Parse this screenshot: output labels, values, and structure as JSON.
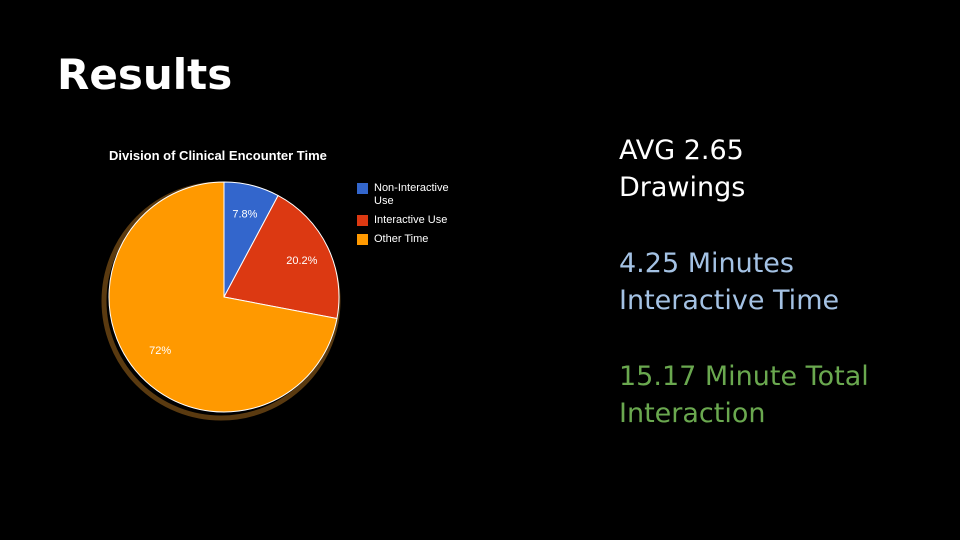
{
  "slide": {
    "title": "Results"
  },
  "chart_data": {
    "type": "pie",
    "title": "Division of Clinical Encounter Time",
    "categories": [
      "Non-Interactive Use",
      "Interactive Use",
      "Other Time"
    ],
    "values": [
      7.8,
      20.2,
      72
    ],
    "labels": [
      "7.8%",
      "20.2%",
      "72%"
    ],
    "colors": [
      "#3366cc",
      "#dc3912",
      "#ff9900"
    ],
    "legend_position": "right",
    "legend_lines": [
      [
        "Non-Interactive",
        "Use"
      ],
      [
        "Interactive Use"
      ],
      [
        "Other Time"
      ]
    ]
  },
  "stats": [
    {
      "line1": "AVG 2.65",
      "line2": "Drawings",
      "color": "#ffffff"
    },
    {
      "line1": "4.25 Minutes",
      "line2": "Interactive Time",
      "color": "#a4c2e4"
    },
    {
      "line1": "15.17 Minute Total",
      "line2": "Interaction",
      "color": "#6aa84f"
    }
  ]
}
